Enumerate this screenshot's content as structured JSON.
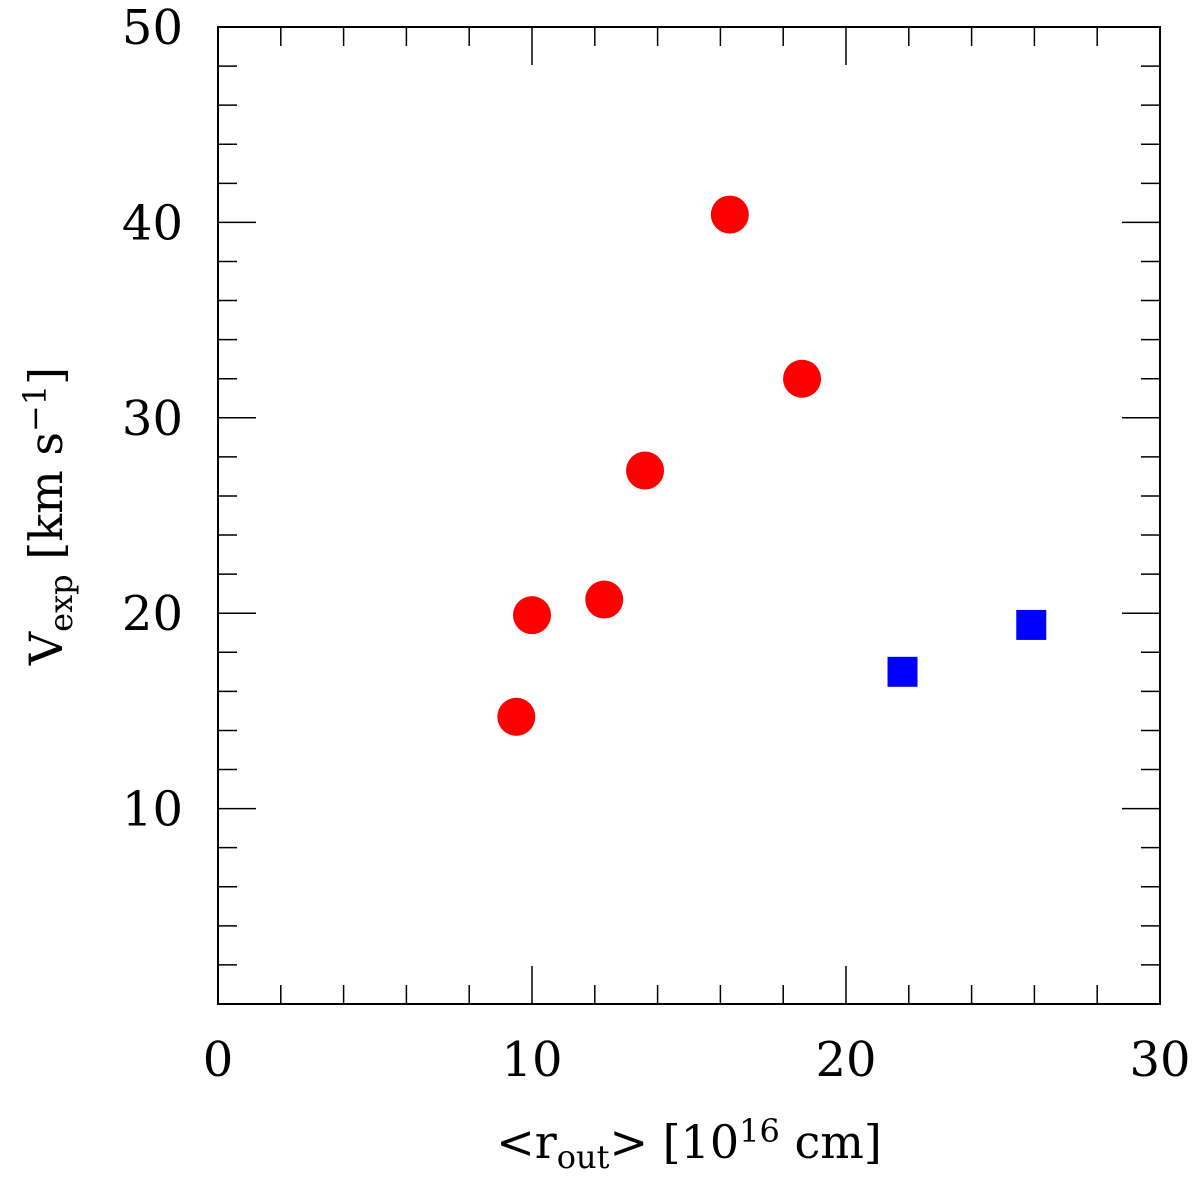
{
  "chart_data": {
    "type": "scatter",
    "title": "",
    "xlabel": {
      "open": "<r",
      "sub": "out",
      "close": "> [10",
      "sup": "16",
      "unit": " cm]"
    },
    "ylabel": {
      "main": "V",
      "sub": "exp",
      "unit": " [km s",
      "sup": "−1",
      "close": "]"
    },
    "xlim": [
      0,
      30
    ],
    "ylim": [
      0,
      50
    ],
    "x_major_ticks": [
      0,
      10,
      20,
      30
    ],
    "y_major_ticks": [
      10,
      20,
      30,
      40,
      50
    ],
    "x_tick_labels": [
      "0",
      "10",
      "20",
      "30"
    ],
    "y_tick_labels": [
      "10",
      "20",
      "30",
      "40",
      "50"
    ],
    "grid": false,
    "series": [
      {
        "marker": "circle",
        "color": "#ff0000",
        "points": [
          {
            "x": 9.5,
            "y": 14.7
          },
          {
            "x": 10.0,
            "y": 19.9
          },
          {
            "x": 12.3,
            "y": 20.7
          },
          {
            "x": 13.6,
            "y": 27.3
          },
          {
            "x": 16.3,
            "y": 40.4
          },
          {
            "x": 18.6,
            "y": 32.0
          }
        ]
      },
      {
        "marker": "square",
        "color": "#0000ff",
        "points": [
          {
            "x": 21.8,
            "y": 17.0
          },
          {
            "x": 25.9,
            "y": 19.4
          }
        ]
      }
    ]
  }
}
